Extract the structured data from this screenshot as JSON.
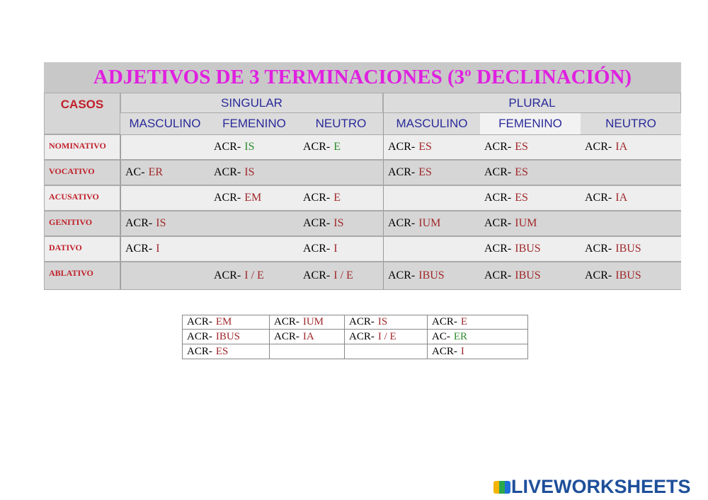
{
  "title": "ADJETIVOS DE 3 TERMINACIONES (3º DECLINACIÓN)",
  "table": {
    "cases_header": "CASOS",
    "groups": [
      "SINGULAR",
      "PLURAL"
    ],
    "genders": [
      "MASCULINO",
      "FEMENINO",
      "NEUTRO",
      "MASCULINO",
      "FEMENINO",
      "NEUTRO"
    ],
    "rows": [
      {
        "case": "NOMINATIVO",
        "cells": [
          null,
          {
            "stem": "ACR-",
            "ending": "IS",
            "color": "#2e8b2e"
          },
          {
            "stem": "ACR-",
            "ending": "E",
            "color": "#2e8b2e"
          },
          {
            "stem": "ACR-",
            "ending": "ES"
          },
          {
            "stem": "ACR-",
            "ending": "ES"
          },
          {
            "stem": "ACR-",
            "ending": "IA"
          }
        ]
      },
      {
        "case": "VOCATIVO",
        "cells": [
          {
            "stem": "AC-",
            "ending": "ER"
          },
          {
            "stem": "ACR-",
            "ending": "IS"
          },
          null,
          {
            "stem": "ACR-",
            "ending": "ES"
          },
          {
            "stem": "ACR-",
            "ending": "ES"
          },
          null
        ]
      },
      {
        "case": "ACUSATIVO",
        "cells": [
          null,
          {
            "stem": "ACR-",
            "ending": "EM"
          },
          {
            "stem": "ACR-",
            "ending": "E"
          },
          null,
          {
            "stem": "ACR-",
            "ending": "ES"
          },
          {
            "stem": "ACR-",
            "ending": "IA"
          }
        ]
      },
      {
        "case": "GENITIVO",
        "cells": [
          {
            "stem": "ACR-",
            "ending": "IS"
          },
          null,
          {
            "stem": "ACR-",
            "ending": "IS"
          },
          {
            "stem": "ACR-",
            "ending": "IUM"
          },
          {
            "stem": "ACR-",
            "ending": "IUM"
          },
          null
        ]
      },
      {
        "case": "DATIVO",
        "cells": [
          {
            "stem": "ACR-",
            "ending": "I"
          },
          null,
          {
            "stem": "ACR-",
            "ending": "I"
          },
          null,
          {
            "stem": "ACR-",
            "ending": "IBUS"
          },
          {
            "stem": "ACR-",
            "ending": "IBUS"
          }
        ]
      },
      {
        "case": "ABLATIVO",
        "cells": [
          null,
          {
            "stem": "ACR-",
            "ending": "I / E"
          },
          {
            "stem": "ACR-",
            "ending": "I / E"
          },
          {
            "stem": "ACR-",
            "ending": "IBUS"
          },
          {
            "stem": "ACR-",
            "ending": "IBUS"
          },
          {
            "stem": "ACR-",
            "ending": "IBUS"
          }
        ]
      }
    ]
  },
  "answers": {
    "rows": [
      [
        {
          "stem": "ACR-",
          "ending": "EM"
        },
        {
          "stem": "ACR-",
          "ending": "IUM"
        },
        {
          "stem": "ACR-",
          "ending": "IS"
        },
        {
          "stem": "ACR-",
          "ending": "E"
        }
      ],
      [
        {
          "stem": "ACR-",
          "ending": "IBUS"
        },
        {
          "stem": "ACR-",
          "ending": "IA"
        },
        {
          "stem": "ACR-",
          "ending": "I / E"
        },
        {
          "stem": "AC-",
          "ending": "ER",
          "color": "#2e8b2e"
        }
      ],
      [
        {
          "stem": "ACR-",
          "ending": "ES"
        },
        null,
        null,
        {
          "stem": "ACR-",
          "ending": "I"
        }
      ]
    ]
  },
  "brand": "LIVEWORKSHEETS"
}
